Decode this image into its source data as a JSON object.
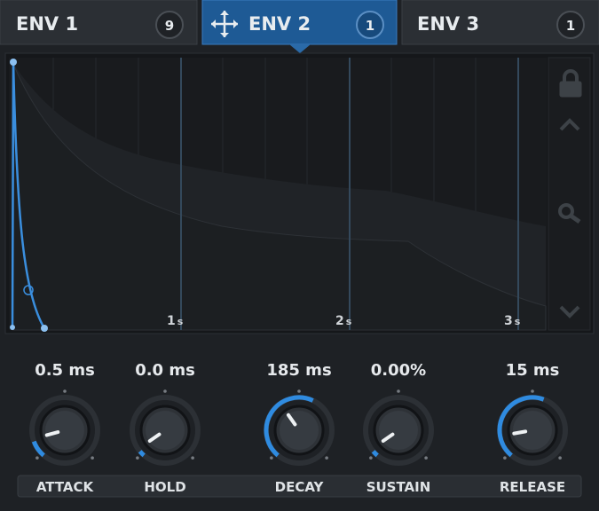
{
  "tabs": [
    {
      "label": "ENV 1",
      "count": "9"
    },
    {
      "label": "ENV 2",
      "count": "1"
    },
    {
      "label": "ENV 3",
      "count": "1"
    }
  ],
  "graph": {
    "time_labels": [
      {
        "number": "1",
        "unit": "s"
      },
      {
        "number": "2",
        "unit": "s"
      },
      {
        "number": "3",
        "unit": "s"
      }
    ]
  },
  "knobs": [
    {
      "value": "0.5 ms",
      "label": "ATTACK"
    },
    {
      "value": "0.0 ms",
      "label": "HOLD"
    },
    {
      "value": "185 ms",
      "label": "DECAY"
    },
    {
      "value": "0.00%",
      "label": "SUSTAIN"
    },
    {
      "value": "15 ms",
      "label": "RELEASE"
    }
  ]
}
